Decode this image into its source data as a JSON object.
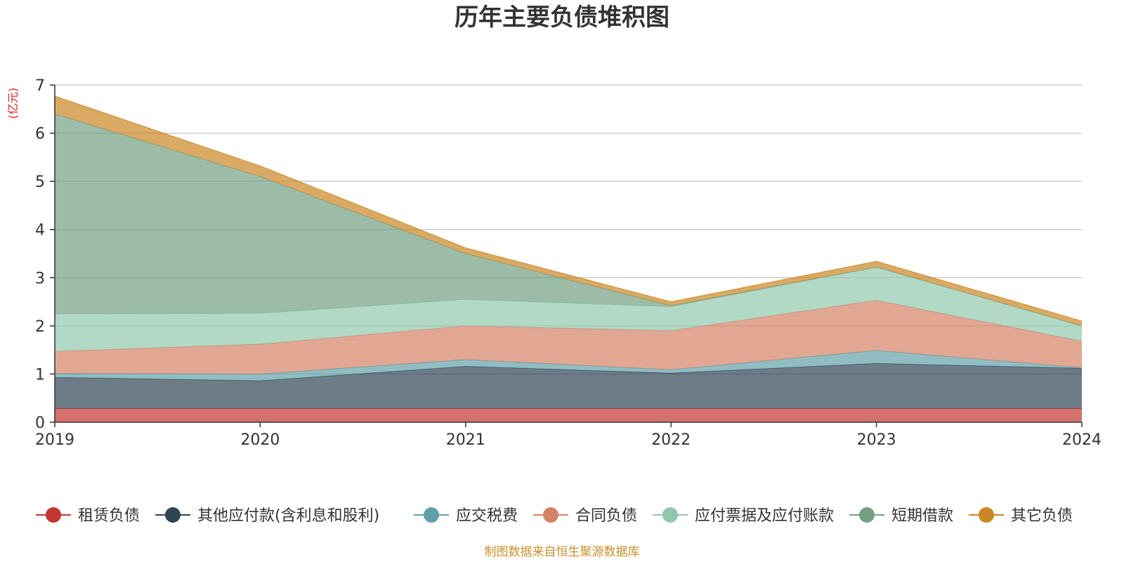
{
  "chart_data": {
    "type": "area",
    "stacked": true,
    "title": "历年主要负债堆积图",
    "unit_label": "(亿元)",
    "categories": [
      "2019",
      "2020",
      "2021",
      "2022",
      "2023",
      "2024"
    ],
    "yticks": [
      "0",
      "1",
      "2",
      "3",
      "4",
      "5",
      "6",
      "7"
    ],
    "ylim": [
      0,
      7
    ],
    "grid": true,
    "legend_position": "bottom",
    "series": [
      {
        "name": "租赁负债",
        "color": "#c23531",
        "values": [
          0.28,
          0.28,
          0.28,
          0.28,
          0.28,
          0.28
        ]
      },
      {
        "name": "其他应付款(含利息和股利)",
        "color": "#2f4554",
        "values": [
          0.65,
          0.58,
          0.88,
          0.74,
          0.94,
          0.84
        ]
      },
      {
        "name": "应交税费",
        "color": "#61a0a8",
        "values": [
          0.08,
          0.14,
          0.14,
          0.07,
          0.27,
          0.01
        ]
      },
      {
        "name": "合同负债",
        "color": "#d48265",
        "values": [
          0.46,
          0.62,
          0.7,
          0.81,
          1.04,
          0.55
        ]
      },
      {
        "name": "应付票据及应付账款",
        "color": "#91c7ae",
        "values": [
          0.78,
          0.64,
          0.55,
          0.5,
          0.69,
          0.32
        ]
      },
      {
        "name": "短期借款",
        "color": "#749f83",
        "values": [
          4.15,
          2.84,
          0.95,
          0.02,
          0.0,
          0.0
        ]
      },
      {
        "name": "其它负债",
        "color": "#ca8622",
        "values": [
          0.37,
          0.22,
          0.12,
          0.08,
          0.12,
          0.1
        ]
      }
    ]
  },
  "footer": {
    "source": "制图数据来自恒生聚源数据库"
  }
}
